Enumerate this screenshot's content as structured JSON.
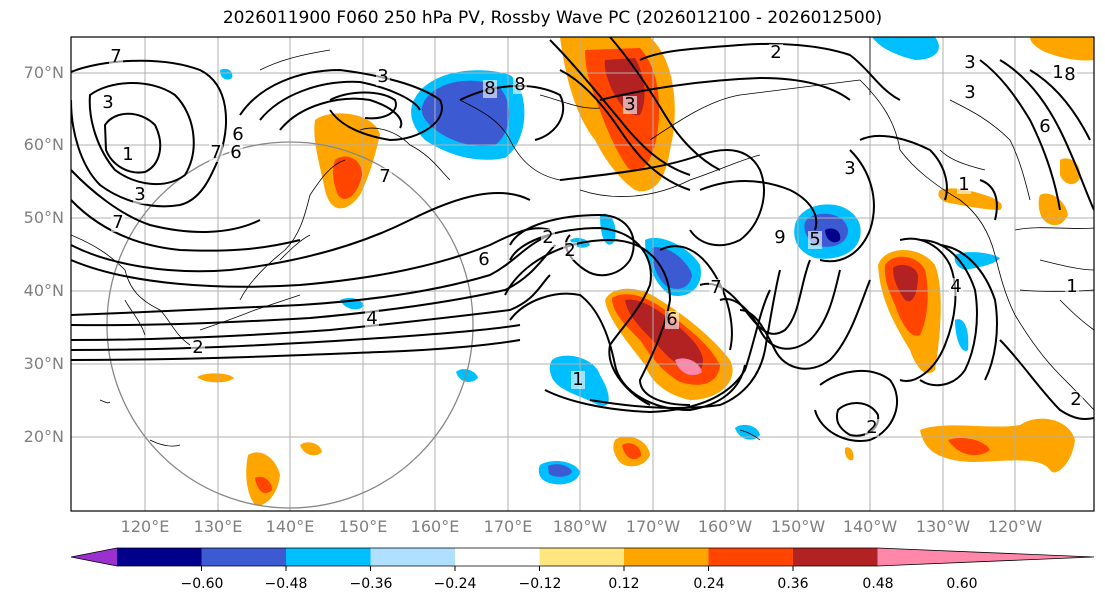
{
  "title": "2026011900 F060 250 hPa PV, Rossby Wave PC (2026012100 - 2026012500)",
  "lat_labels": [
    "70°N",
    "60°N",
    "50°N",
    "40°N",
    "30°N",
    "20°N"
  ],
  "lon_labels": [
    "120°E",
    "130°E",
    "140°E",
    "150°E",
    "160°E",
    "170°E",
    "180°W",
    "170°W",
    "160°W",
    "150°W",
    "140°W",
    "130°W",
    "120°W"
  ],
  "colorbar": {
    "ticks": [
      "−0.60",
      "−0.48",
      "−0.36",
      "−0.24",
      "−0.12",
      "0.12",
      "0.24",
      "0.36",
      "0.48",
      "0.60"
    ],
    "colors": [
      "#9b30d0",
      "#00008b",
      "#3c5ad2",
      "#00bfff",
      "#b0e0ff",
      "#ffffff",
      "#ffe680",
      "#ffa500",
      "#ff4500",
      "#b22222",
      "#ff88aa"
    ]
  },
  "contour_labels": [
    "7",
    "3",
    "1",
    "3",
    "7",
    "2",
    "3",
    "8",
    "3",
    "2",
    "3",
    "1",
    "6",
    "7",
    "6",
    "3",
    "6",
    "2",
    "2",
    "4",
    "1",
    "6",
    "5",
    "4",
    "7",
    "8",
    "1",
    "2",
    "9",
    "2",
    "1",
    "3",
    "6",
    "7",
    "8"
  ]
}
